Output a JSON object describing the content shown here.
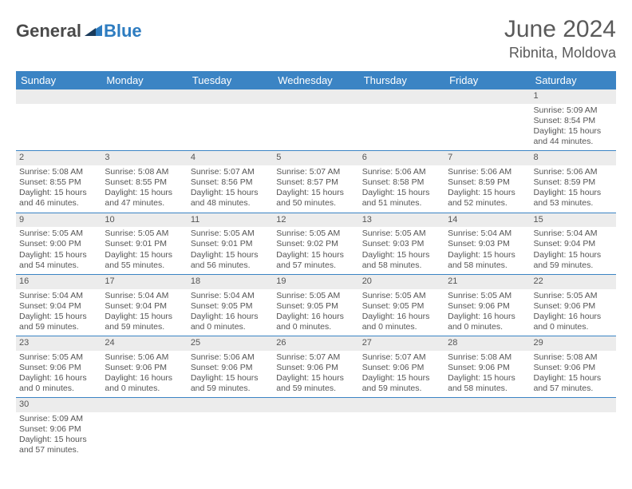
{
  "logo": {
    "part1": "General",
    "part2": "Blue"
  },
  "title": "June 2024",
  "location": "Ribnita, Moldova",
  "colors": {
    "header_bg": "#3b84c4",
    "header_fg": "#ffffff",
    "daynum_bg": "#ececec",
    "border": "#3b84c4",
    "text": "#555555",
    "logo_gray": "#4a4a4a",
    "logo_blue": "#2d7cc0"
  },
  "weekdays": [
    "Sunday",
    "Monday",
    "Tuesday",
    "Wednesday",
    "Thursday",
    "Friday",
    "Saturday"
  ],
  "weeks": [
    [
      null,
      null,
      null,
      null,
      null,
      null,
      {
        "d": "1",
        "sr": "Sunrise: 5:09 AM",
        "ss": "Sunset: 8:54 PM",
        "dl": "Daylight: 15 hours and 44 minutes."
      }
    ],
    [
      {
        "d": "2",
        "sr": "Sunrise: 5:08 AM",
        "ss": "Sunset: 8:55 PM",
        "dl": "Daylight: 15 hours and 46 minutes."
      },
      {
        "d": "3",
        "sr": "Sunrise: 5:08 AM",
        "ss": "Sunset: 8:55 PM",
        "dl": "Daylight: 15 hours and 47 minutes."
      },
      {
        "d": "4",
        "sr": "Sunrise: 5:07 AM",
        "ss": "Sunset: 8:56 PM",
        "dl": "Daylight: 15 hours and 48 minutes."
      },
      {
        "d": "5",
        "sr": "Sunrise: 5:07 AM",
        "ss": "Sunset: 8:57 PM",
        "dl": "Daylight: 15 hours and 50 minutes."
      },
      {
        "d": "6",
        "sr": "Sunrise: 5:06 AM",
        "ss": "Sunset: 8:58 PM",
        "dl": "Daylight: 15 hours and 51 minutes."
      },
      {
        "d": "7",
        "sr": "Sunrise: 5:06 AM",
        "ss": "Sunset: 8:59 PM",
        "dl": "Daylight: 15 hours and 52 minutes."
      },
      {
        "d": "8",
        "sr": "Sunrise: 5:06 AM",
        "ss": "Sunset: 8:59 PM",
        "dl": "Daylight: 15 hours and 53 minutes."
      }
    ],
    [
      {
        "d": "9",
        "sr": "Sunrise: 5:05 AM",
        "ss": "Sunset: 9:00 PM",
        "dl": "Daylight: 15 hours and 54 minutes."
      },
      {
        "d": "10",
        "sr": "Sunrise: 5:05 AM",
        "ss": "Sunset: 9:01 PM",
        "dl": "Daylight: 15 hours and 55 minutes."
      },
      {
        "d": "11",
        "sr": "Sunrise: 5:05 AM",
        "ss": "Sunset: 9:01 PM",
        "dl": "Daylight: 15 hours and 56 minutes."
      },
      {
        "d": "12",
        "sr": "Sunrise: 5:05 AM",
        "ss": "Sunset: 9:02 PM",
        "dl": "Daylight: 15 hours and 57 minutes."
      },
      {
        "d": "13",
        "sr": "Sunrise: 5:05 AM",
        "ss": "Sunset: 9:03 PM",
        "dl": "Daylight: 15 hours and 58 minutes."
      },
      {
        "d": "14",
        "sr": "Sunrise: 5:04 AM",
        "ss": "Sunset: 9:03 PM",
        "dl": "Daylight: 15 hours and 58 minutes."
      },
      {
        "d": "15",
        "sr": "Sunrise: 5:04 AM",
        "ss": "Sunset: 9:04 PM",
        "dl": "Daylight: 15 hours and 59 minutes."
      }
    ],
    [
      {
        "d": "16",
        "sr": "Sunrise: 5:04 AM",
        "ss": "Sunset: 9:04 PM",
        "dl": "Daylight: 15 hours and 59 minutes."
      },
      {
        "d": "17",
        "sr": "Sunrise: 5:04 AM",
        "ss": "Sunset: 9:04 PM",
        "dl": "Daylight: 15 hours and 59 minutes."
      },
      {
        "d": "18",
        "sr": "Sunrise: 5:04 AM",
        "ss": "Sunset: 9:05 PM",
        "dl": "Daylight: 16 hours and 0 minutes."
      },
      {
        "d": "19",
        "sr": "Sunrise: 5:05 AM",
        "ss": "Sunset: 9:05 PM",
        "dl": "Daylight: 16 hours and 0 minutes."
      },
      {
        "d": "20",
        "sr": "Sunrise: 5:05 AM",
        "ss": "Sunset: 9:05 PM",
        "dl": "Daylight: 16 hours and 0 minutes."
      },
      {
        "d": "21",
        "sr": "Sunrise: 5:05 AM",
        "ss": "Sunset: 9:06 PM",
        "dl": "Daylight: 16 hours and 0 minutes."
      },
      {
        "d": "22",
        "sr": "Sunrise: 5:05 AM",
        "ss": "Sunset: 9:06 PM",
        "dl": "Daylight: 16 hours and 0 minutes."
      }
    ],
    [
      {
        "d": "23",
        "sr": "Sunrise: 5:05 AM",
        "ss": "Sunset: 9:06 PM",
        "dl": "Daylight: 16 hours and 0 minutes."
      },
      {
        "d": "24",
        "sr": "Sunrise: 5:06 AM",
        "ss": "Sunset: 9:06 PM",
        "dl": "Daylight: 16 hours and 0 minutes."
      },
      {
        "d": "25",
        "sr": "Sunrise: 5:06 AM",
        "ss": "Sunset: 9:06 PM",
        "dl": "Daylight: 15 hours and 59 minutes."
      },
      {
        "d": "26",
        "sr": "Sunrise: 5:07 AM",
        "ss": "Sunset: 9:06 PM",
        "dl": "Daylight: 15 hours and 59 minutes."
      },
      {
        "d": "27",
        "sr": "Sunrise: 5:07 AM",
        "ss": "Sunset: 9:06 PM",
        "dl": "Daylight: 15 hours and 59 minutes."
      },
      {
        "d": "28",
        "sr": "Sunrise: 5:08 AM",
        "ss": "Sunset: 9:06 PM",
        "dl": "Daylight: 15 hours and 58 minutes."
      },
      {
        "d": "29",
        "sr": "Sunrise: 5:08 AM",
        "ss": "Sunset: 9:06 PM",
        "dl": "Daylight: 15 hours and 57 minutes."
      }
    ],
    [
      {
        "d": "30",
        "sr": "Sunrise: 5:09 AM",
        "ss": "Sunset: 9:06 PM",
        "dl": "Daylight: 15 hours and 57 minutes."
      },
      null,
      null,
      null,
      null,
      null,
      null
    ]
  ]
}
